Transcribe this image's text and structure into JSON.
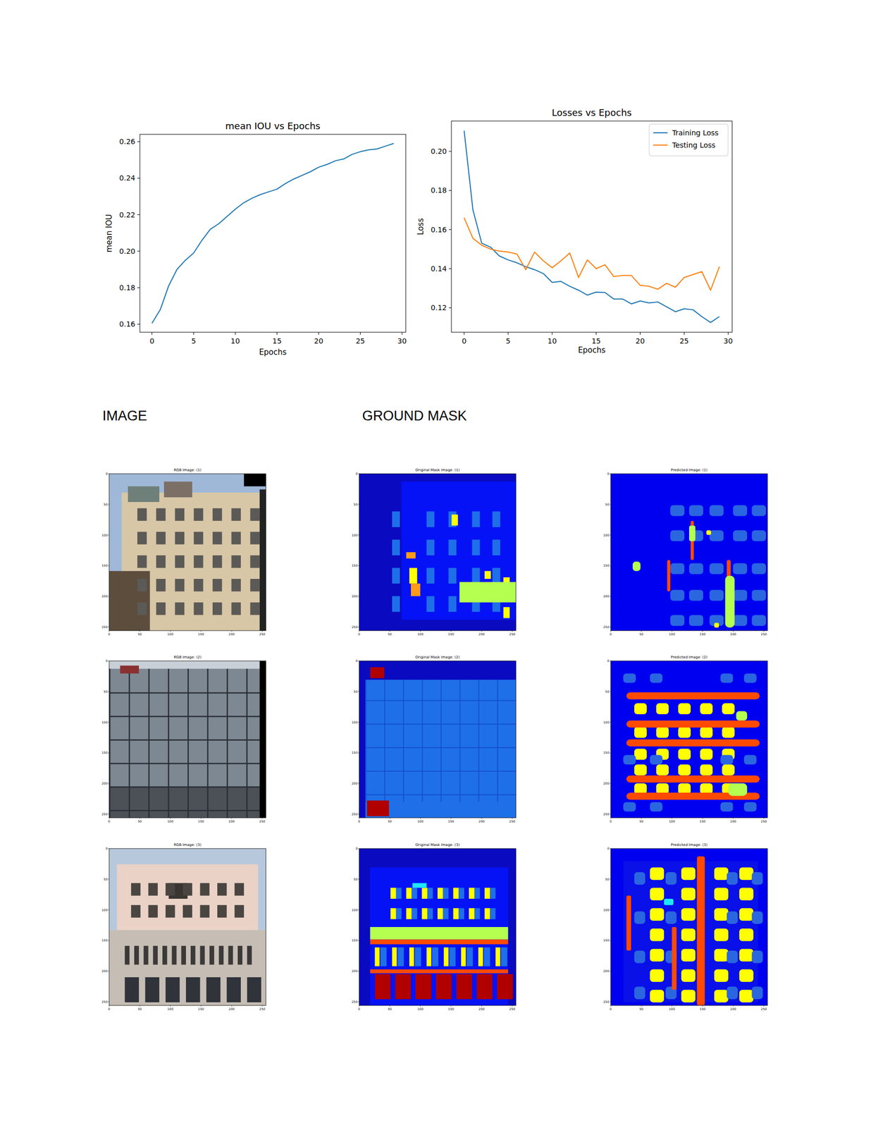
{
  "chart_data": [
    {
      "type": "line",
      "title": "mean IOU vs Epochs",
      "x_label": "Epochs",
      "y_label": "mean IOU",
      "x": [
        0,
        1,
        2,
        3,
        4,
        5,
        6,
        7,
        8,
        9,
        10,
        11,
        12,
        13,
        14,
        15,
        16,
        17,
        18,
        19,
        20,
        21,
        22,
        23,
        24,
        25,
        26,
        27,
        28,
        29
      ],
      "values": [
        0.1605,
        0.168,
        0.181,
        0.19,
        0.195,
        0.199,
        0.206,
        0.212,
        0.215,
        0.219,
        0.223,
        0.2265,
        0.229,
        0.231,
        0.2325,
        0.234,
        0.237,
        0.2395,
        0.2415,
        0.2435,
        0.246,
        0.2475,
        0.2495,
        0.2505,
        0.253,
        0.2545,
        0.2555,
        0.256,
        0.2575,
        0.259
      ],
      "color": "#1f77b4",
      "xlim": [
        -1.45,
        30.45
      ],
      "ylim": [
        0.1556,
        0.264
      ],
      "xticks": [
        0,
        5,
        10,
        15,
        20,
        25,
        30
      ],
      "yticks": [
        0.16,
        0.18,
        {
          "value": 0.2,
          "label": "0.20"
        },
        0.22,
        0.24,
        0.26
      ],
      "grid": false
    },
    {
      "type": "line",
      "title": "Losses vs Epochs",
      "x_label": "Epochs",
      "y_label": "Loss",
      "x": [
        0,
        1,
        2,
        3,
        4,
        5,
        6,
        7,
        8,
        9,
        10,
        11,
        12,
        13,
        14,
        15,
        16,
        17,
        18,
        19,
        20,
        21,
        22,
        23,
        24,
        25,
        26,
        27,
        28,
        29
      ],
      "series": [
        {
          "name": "Training Loss",
          "color": "#1f77b4",
          "values": [
            0.2105,
            0.17,
            0.153,
            0.151,
            0.1465,
            0.1445,
            0.143,
            0.141,
            0.1395,
            0.1375,
            0.133,
            0.1335,
            0.131,
            0.129,
            0.1265,
            0.128,
            0.1278,
            0.1245,
            0.1245,
            0.122,
            0.1235,
            0.1225,
            0.123,
            0.1205,
            0.118,
            0.1195,
            0.119,
            0.1155,
            0.1125,
            0.1155
          ]
        },
        {
          "name": "Testing Loss",
          "color": "#ff7f0e",
          "values": [
            0.166,
            0.1555,
            0.152,
            0.15,
            0.149,
            0.1485,
            0.1475,
            0.1395,
            0.1485,
            0.144,
            0.1405,
            0.144,
            0.148,
            0.1355,
            0.1445,
            0.14,
            0.142,
            0.136,
            0.1365,
            0.1365,
            0.1315,
            0.131,
            0.1295,
            0.1325,
            0.1305,
            0.1355,
            0.137,
            0.1385,
            0.129,
            0.141
          ]
        }
      ],
      "xlim": [
        -1.45,
        30.45
      ],
      "ylim": [
        0.1075,
        0.2155
      ],
      "xticks": [
        0,
        5,
        10,
        15,
        20,
        25,
        30
      ],
      "yticks": [
        0.12,
        0.14,
        0.16,
        0.18,
        {
          "value": 0.2,
          "label": "0.20"
        }
      ],
      "legend": "upper right",
      "grid": false
    }
  ],
  "panels": {
    "headings": [
      "IMAGE",
      "GROUND MASK"
    ],
    "rows": [
      {
        "titles": [
          "RGB Image: (1)",
          "Original Mask Image: (1)",
          "Predicted Image: (1)"
        ]
      },
      {
        "titles": [
          "RGB Image: (2)",
          "Original Mask Image: (2)",
          "Predicted Image: (2)"
        ]
      },
      {
        "titles": [
          "RGB Image: (3)",
          "Original Mask Image: (3)",
          "Predicted Image: (3)"
        ]
      }
    ],
    "axis_ticks": [
      0,
      50,
      100,
      150,
      200,
      250
    ]
  }
}
